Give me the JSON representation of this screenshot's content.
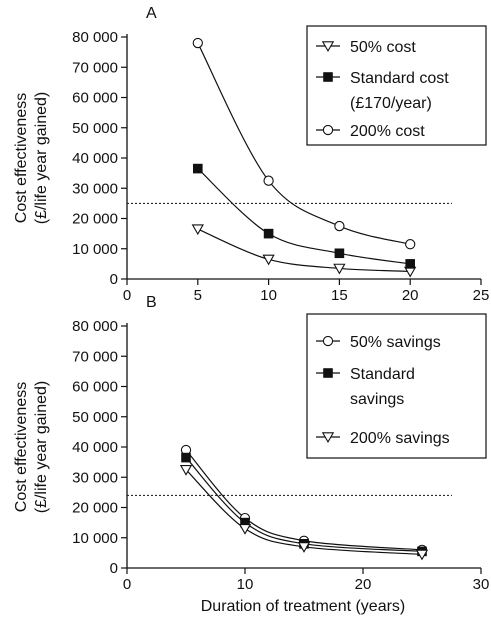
{
  "chart_data": [
    {
      "type": "line",
      "panel_label": "A",
      "ylabel_line1": "Cost effectiveness",
      "ylabel_line2": "(£/life year gained)",
      "xlabel": "",
      "xlim": [
        0,
        25
      ],
      "ylim": [
        0,
        80000
      ],
      "xticks": [
        0,
        5,
        10,
        15,
        20,
        25
      ],
      "xtick_labels": [
        "0",
        "5",
        "10",
        "15",
        "20",
        "25"
      ],
      "yticks": [
        0,
        10000,
        20000,
        30000,
        40000,
        50000,
        60000,
        70000,
        80000
      ],
      "ytick_labels": [
        "0",
        "10 000",
        "20 000",
        "30 000",
        "40 000",
        "50 000",
        "60 000",
        "70 000",
        "80 000"
      ],
      "reference_line": 25000,
      "legend_position": "top-right",
      "series": [
        {
          "name": "50% cost",
          "marker": "triangle-down-open",
          "x": [
            5,
            10,
            15,
            20
          ],
          "y": [
            16500,
            6500,
            3500,
            2500
          ]
        },
        {
          "name": "Standard cost (£170/year)",
          "name_lines": [
            "Standard cost",
            "(£170/year)"
          ],
          "marker": "square-filled",
          "x": [
            5,
            10,
            15,
            20
          ],
          "y": [
            36500,
            15000,
            8500,
            5000
          ]
        },
        {
          "name": "200% cost",
          "marker": "circle-open",
          "x": [
            5,
            10,
            15,
            20
          ],
          "y": [
            78000,
            32500,
            17500,
            11500
          ]
        }
      ]
    },
    {
      "type": "line",
      "panel_label": "B",
      "ylabel_line1": "Cost effectiveness",
      "ylabel_line2": "(£/life year gained)",
      "xlabel": "Duration of treatment (years)",
      "xlim": [
        0,
        30
      ],
      "ylim": [
        0,
        80000
      ],
      "xticks": [
        0,
        10,
        20,
        30
      ],
      "xtick_labels": [
        "0",
        "10",
        "20",
        "30"
      ],
      "yticks": [
        0,
        10000,
        20000,
        30000,
        40000,
        50000,
        60000,
        70000,
        80000
      ],
      "ytick_labels": [
        "0",
        "10 000",
        "20 000",
        "30 000",
        "40 000",
        "50 000",
        "60 000",
        "70 000",
        "80 000"
      ],
      "reference_line": 24000,
      "legend_position": "top-right",
      "series": [
        {
          "name": "50% savings",
          "marker": "circle-open",
          "x": [
            5,
            10,
            15,
            25
          ],
          "y": [
            39000,
            16500,
            9000,
            6000
          ]
        },
        {
          "name": "Standard savings",
          "name_lines": [
            "Standard",
            "savings"
          ],
          "marker": "square-filled",
          "x": [
            5,
            10,
            15,
            25
          ],
          "y": [
            36500,
            15000,
            8000,
            5500
          ]
        },
        {
          "name": "200% savings",
          "marker": "triangle-down-open",
          "x": [
            5,
            10,
            15,
            25
          ],
          "y": [
            32500,
            13000,
            7000,
            4500
          ]
        }
      ]
    }
  ]
}
